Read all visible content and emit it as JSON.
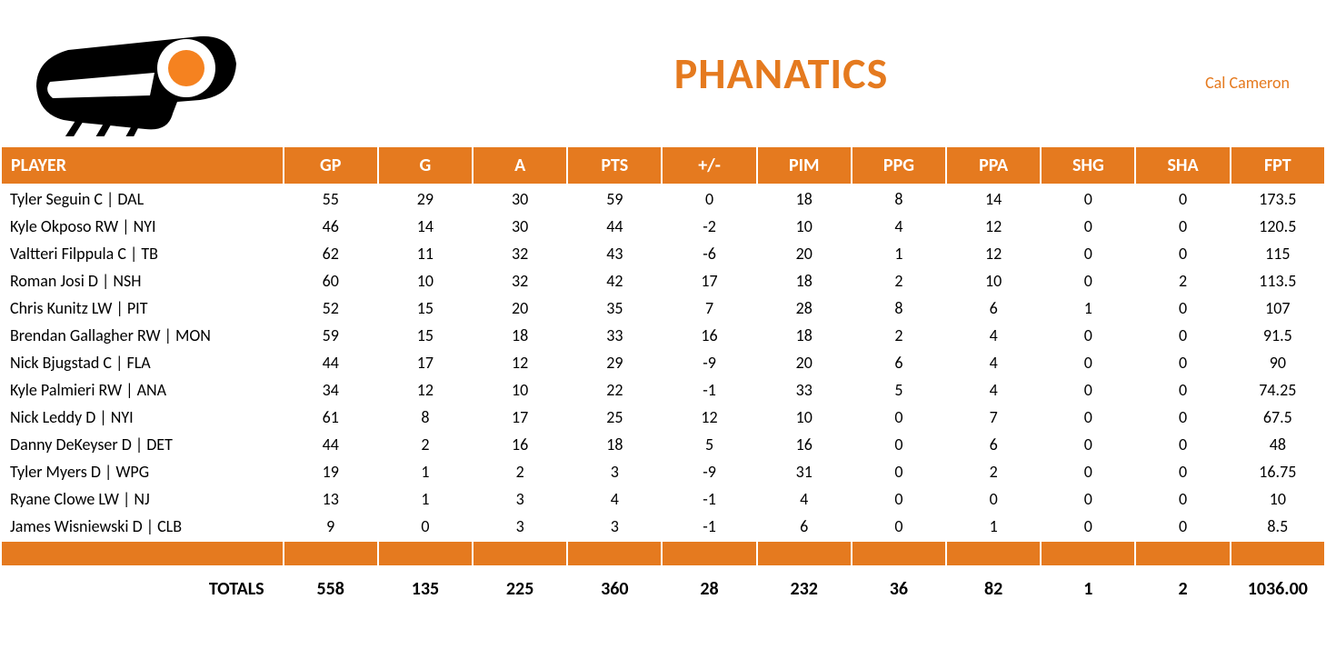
{
  "header": {
    "team_name": "PHANATICS",
    "owner": "Cal Cameron"
  },
  "colors": {
    "primary": "#e57a1f",
    "header_bg": "#e57a1f",
    "header_text": "#ffffff",
    "body_bg": "#ffffff",
    "text": "#000000",
    "logo_black": "#000000",
    "logo_orange": "#f58220",
    "logo_white": "#ffffff"
  },
  "table": {
    "columns": [
      "PLAYER",
      "GP",
      "G",
      "A",
      "PTS",
      "+/-",
      "PIM",
      "PPG",
      "PPA",
      "SHG",
      "SHA",
      "FPT"
    ],
    "rows": [
      {
        "player": "Tyler Seguin C | DAL",
        "gp": 55,
        "g": 29,
        "a": 30,
        "pts": 59,
        "pm": 0,
        "pim": 18,
        "ppg": 8,
        "ppa": 14,
        "shg": 0,
        "sha": 0,
        "fpt": 173.5
      },
      {
        "player": "Kyle Okposo RW | NYI",
        "gp": 46,
        "g": 14,
        "a": 30,
        "pts": 44,
        "pm": -2,
        "pim": 10,
        "ppg": 4,
        "ppa": 12,
        "shg": 0,
        "sha": 0,
        "fpt": 120.5
      },
      {
        "player": "Valtteri Filppula C | TB",
        "gp": 62,
        "g": 11,
        "a": 32,
        "pts": 43,
        "pm": -6,
        "pim": 20,
        "ppg": 1,
        "ppa": 12,
        "shg": 0,
        "sha": 0,
        "fpt": 115
      },
      {
        "player": "Roman Josi D | NSH",
        "gp": 60,
        "g": 10,
        "a": 32,
        "pts": 42,
        "pm": 17,
        "pim": 18,
        "ppg": 2,
        "ppa": 10,
        "shg": 0,
        "sha": 2,
        "fpt": 113.5
      },
      {
        "player": "Chris Kunitz LW | PIT",
        "gp": 52,
        "g": 15,
        "a": 20,
        "pts": 35,
        "pm": 7,
        "pim": 28,
        "ppg": 8,
        "ppa": 6,
        "shg": 1,
        "sha": 0,
        "fpt": 107
      },
      {
        "player": "Brendan Gallagher RW | MON",
        "gp": 59,
        "g": 15,
        "a": 18,
        "pts": 33,
        "pm": 16,
        "pim": 18,
        "ppg": 2,
        "ppa": 4,
        "shg": 0,
        "sha": 0,
        "fpt": 91.5
      },
      {
        "player": "Nick Bjugstad C | FLA",
        "gp": 44,
        "g": 17,
        "a": 12,
        "pts": 29,
        "pm": -9,
        "pim": 20,
        "ppg": 6,
        "ppa": 4,
        "shg": 0,
        "sha": 0,
        "fpt": 90
      },
      {
        "player": "Kyle Palmieri RW | ANA",
        "gp": 34,
        "g": 12,
        "a": 10,
        "pts": 22,
        "pm": -1,
        "pim": 33,
        "ppg": 5,
        "ppa": 4,
        "shg": 0,
        "sha": 0,
        "fpt": 74.25
      },
      {
        "player": "Nick Leddy D | NYI",
        "gp": 61,
        "g": 8,
        "a": 17,
        "pts": 25,
        "pm": 12,
        "pim": 10,
        "ppg": 0,
        "ppa": 7,
        "shg": 0,
        "sha": 0,
        "fpt": 67.5
      },
      {
        "player": "Danny DeKeyser D | DET",
        "gp": 44,
        "g": 2,
        "a": 16,
        "pts": 18,
        "pm": 5,
        "pim": 16,
        "ppg": 0,
        "ppa": 6,
        "shg": 0,
        "sha": 0,
        "fpt": 48
      },
      {
        "player": "Tyler Myers D | WPG",
        "gp": 19,
        "g": 1,
        "a": 2,
        "pts": 3,
        "pm": -9,
        "pim": 31,
        "ppg": 0,
        "ppa": 2,
        "shg": 0,
        "sha": 0,
        "fpt": 16.75
      },
      {
        "player": "Ryane Clowe LW | NJ",
        "gp": 13,
        "g": 1,
        "a": 3,
        "pts": 4,
        "pm": -1,
        "pim": 4,
        "ppg": 0,
        "ppa": 0,
        "shg": 0,
        "sha": 0,
        "fpt": 10
      },
      {
        "player": "James Wisniewski D | CLB",
        "gp": 9,
        "g": 0,
        "a": 3,
        "pts": 3,
        "pm": -1,
        "pim": 6,
        "ppg": 0,
        "ppa": 1,
        "shg": 0,
        "sha": 0,
        "fpt": 8.5
      }
    ],
    "totals": {
      "label": "TOTALS",
      "gp": 558,
      "g": 135,
      "a": 225,
      "pts": 360,
      "pm": 28,
      "pim": 232,
      "ppg": 36,
      "ppa": 82,
      "shg": 1,
      "sha": 2,
      "fpt": "1036.00"
    }
  }
}
